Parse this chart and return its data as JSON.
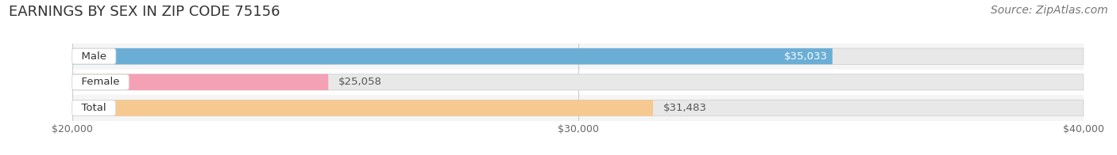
{
  "title": "EARNINGS BY SEX IN ZIP CODE 75156",
  "source": "Source: ZipAtlas.com",
  "categories": [
    "Male",
    "Female",
    "Total"
  ],
  "values": [
    35033,
    25058,
    31483
  ],
  "bar_colors": [
    "#6aaed6",
    "#f4a0b5",
    "#f5c990"
  ],
  "label_texts": [
    "$35,033",
    "$25,058",
    "$31,483"
  ],
  "label_inside": [
    true,
    false,
    false
  ],
  "xlim": [
    20000,
    40000
  ],
  "xticks": [
    20000,
    30000,
    40000
  ],
  "xticklabels": [
    "$20,000",
    "$30,000",
    "$40,000"
  ],
  "bar_height": 0.62,
  "background_color": "#ffffff",
  "bar_bg_color": "#e8e8e8",
  "title_fontsize": 13,
  "source_fontsize": 10,
  "tick_fontsize": 9,
  "category_fontsize": 9.5,
  "value_fontsize": 9.5,
  "row_bg_colors": [
    "#f5f5f5",
    "#ffffff",
    "#f5f5f5"
  ]
}
